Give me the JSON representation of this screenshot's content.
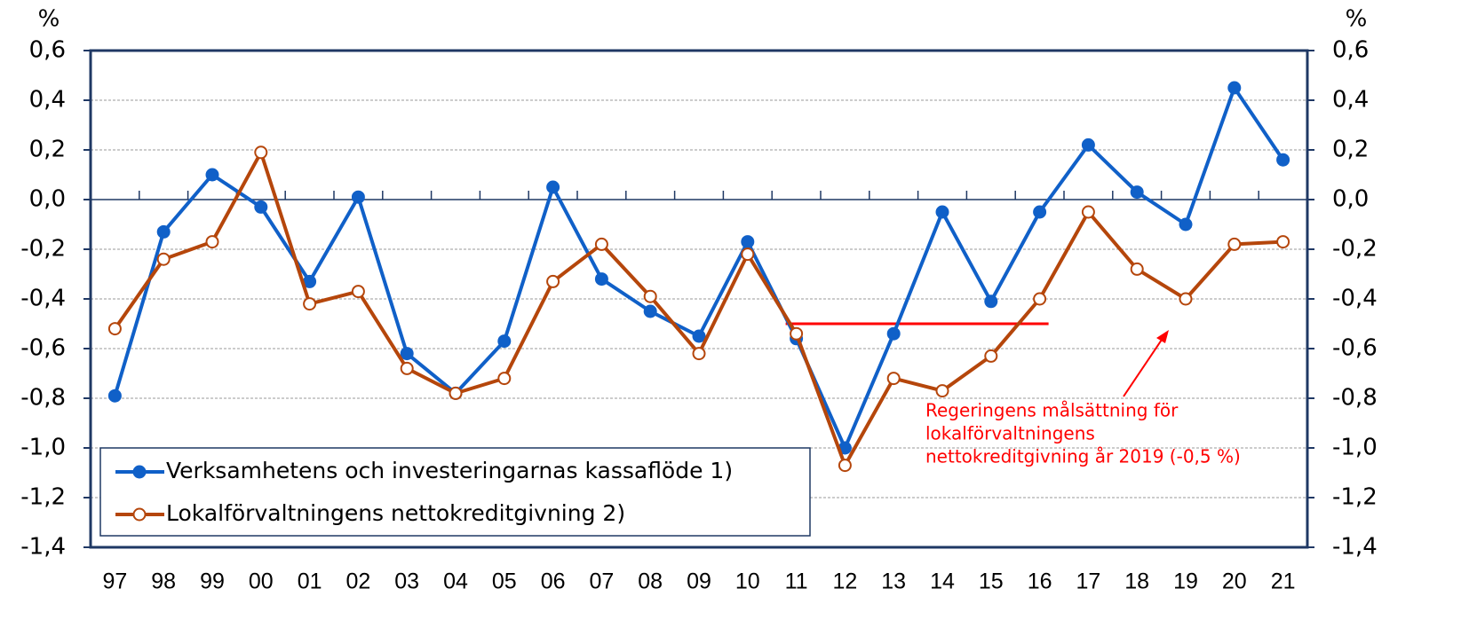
{
  "chart_data": {
    "type": "line",
    "ylabel": "%",
    "y2label": "%",
    "categories": [
      "97",
      "98",
      "99",
      "00",
      "01",
      "02",
      "03",
      "04",
      "05",
      "06",
      "07",
      "08",
      "09",
      "10",
      "11",
      "12",
      "13",
      "14",
      "15",
      "16",
      "17",
      "18",
      "19",
      "20",
      "21"
    ],
    "series": [
      {
        "name": "Verksamhetens och investeringarnas kassaflöde 1)",
        "color": "#1060c8",
        "marker": "filled",
        "values": [
          -0.79,
          -0.13,
          0.1,
          -0.03,
          -0.33,
          0.01,
          -0.62,
          -0.78,
          -0.57,
          0.05,
          -0.32,
          -0.45,
          -0.55,
          -0.17,
          -0.56,
          -1.0,
          -0.54,
          -0.05,
          -0.41,
          -0.05,
          0.22,
          0.03,
          -0.1,
          0.45,
          0.16
        ]
      },
      {
        "name": "Lokalförvaltningens nettokreditgivning 2)",
        "color": "#b5460b",
        "marker": "open",
        "values": [
          -0.52,
          -0.24,
          -0.17,
          0.19,
          -0.42,
          -0.37,
          -0.68,
          -0.78,
          -0.72,
          -0.33,
          -0.18,
          -0.39,
          -0.62,
          -0.22,
          -0.54,
          -1.07,
          -0.72,
          -0.77,
          -0.63,
          -0.4,
          -0.05,
          -0.28,
          -0.4,
          -0.18,
          -0.17
        ]
      }
    ],
    "ylim": [
      -1.4,
      0.6
    ],
    "yticks": [
      {
        "value": -1.4,
        "label": "-1,4"
      },
      {
        "value": -1.2,
        "label": "-1,2"
      },
      {
        "value": -1.0,
        "label": "-1,0"
      },
      {
        "value": -0.8,
        "label": "-0,8"
      },
      {
        "value": -0.6,
        "label": "-0,6"
      },
      {
        "value": -0.4,
        "label": "-0,4"
      },
      {
        "value": -0.2,
        "label": "-0,2"
      },
      {
        "value": 0,
        "label": "0,0"
      },
      {
        "value": 0.2,
        "label": "0,2"
      },
      {
        "value": 0.4,
        "label": "0,4"
      },
      {
        "value": 0.6,
        "label": "0,6"
      }
    ],
    "y2lim": [
      -1.4,
      0.6
    ],
    "y2ticks": [
      {
        "value": -1.4,
        "label": "-1,4"
      },
      {
        "value": -1.2,
        "label": "-1,2"
      },
      {
        "value": -1.0,
        "label": "-1,0"
      },
      {
        "value": -0.8,
        "label": "-0,8"
      },
      {
        "value": -0.6,
        "label": "-0,6"
      },
      {
        "value": -0.4,
        "label": "-0,4"
      },
      {
        "value": -0.2,
        "label": "-0,2"
      },
      {
        "value": 0,
        "label": "0,0"
      },
      {
        "value": 0.2,
        "label": "0,2"
      },
      {
        "value": 0.4,
        "label": "0,4"
      },
      {
        "value": 0.6,
        "label": "0,6"
      }
    ],
    "grid": true,
    "legend": "lower left",
    "target": {
      "value": -0.5,
      "color": "#ff0000",
      "annotation": [
        "Regeringens målsättning för",
        "lokalförvaltningens",
        "nettokreditgivning år 2019 (-0,5 %)"
      ]
    }
  }
}
